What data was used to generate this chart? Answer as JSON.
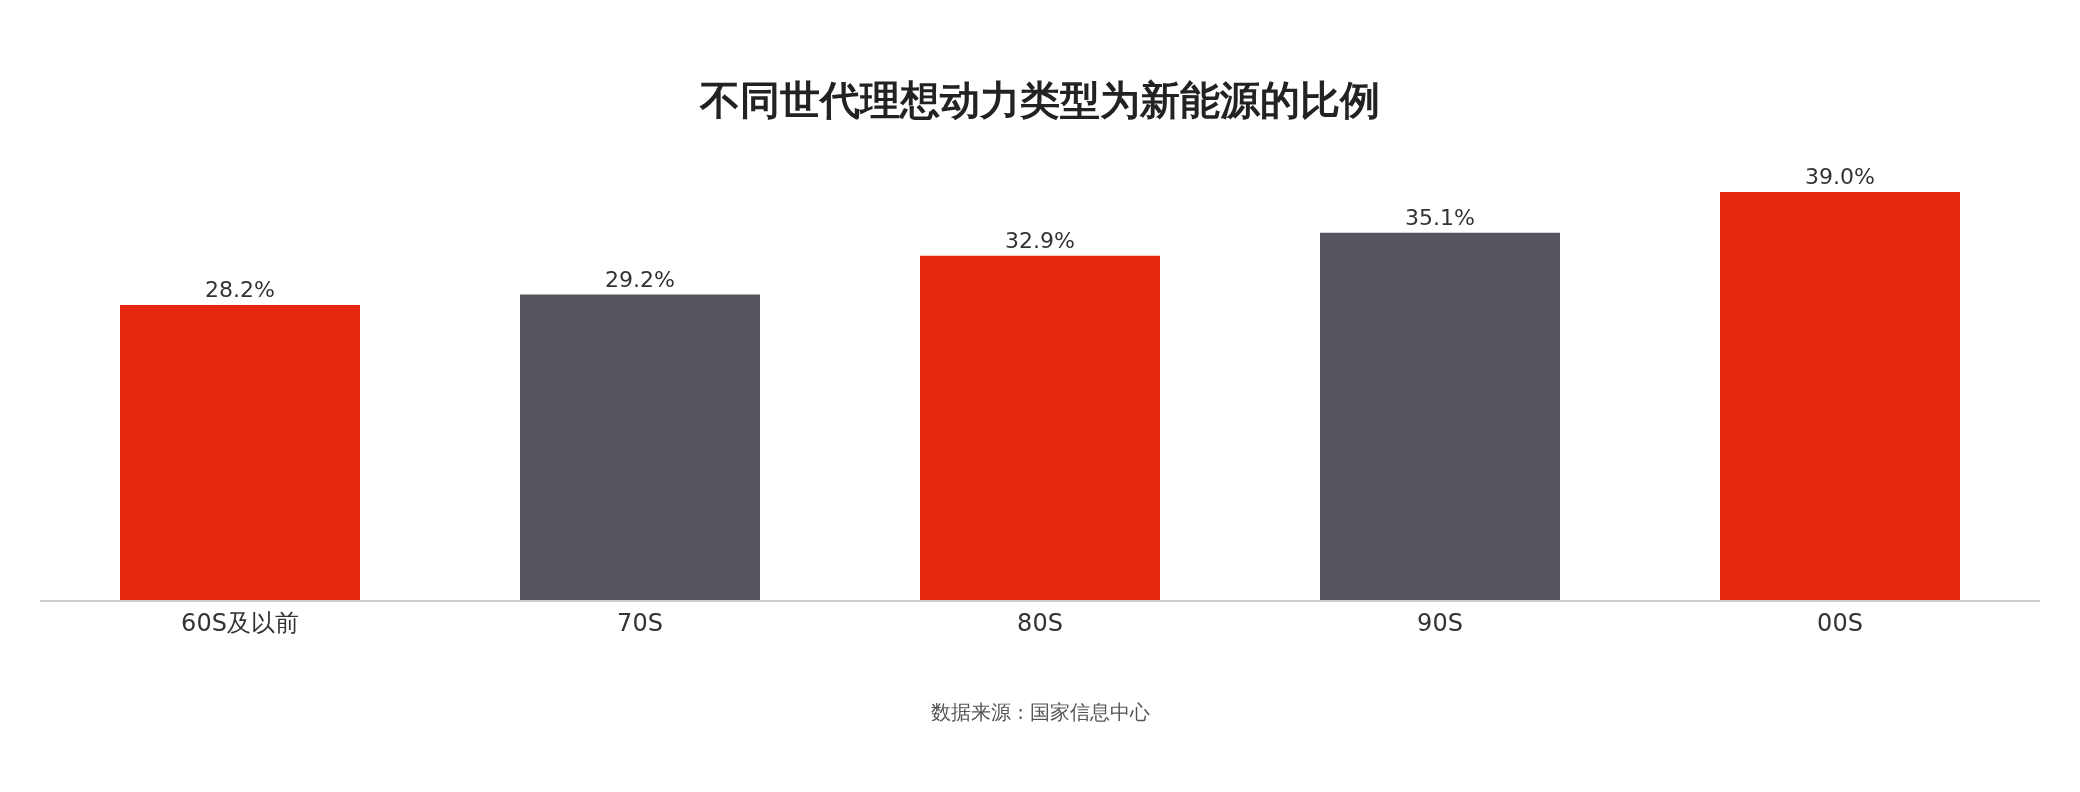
{
  "chart_data": {
    "type": "bar",
    "title": "不同世代理想动力类型为新能源的比例",
    "categories": [
      "60S及以前",
      "70S",
      "80S",
      "90S",
      "00S"
    ],
    "values": [
      28.2,
      29.2,
      32.9,
      35.1,
      39.0
    ],
    "value_labels": [
      "28.2%",
      "29.2%",
      "32.9%",
      "35.1%",
      "39.0%"
    ],
    "colors": [
      "#e52710",
      "#56545e",
      "#e52710",
      "#56545e",
      "#e52710"
    ],
    "annotations": [
      "数据来源 : 国家信息中心"
    ],
    "grid": false,
    "legend": false
  }
}
